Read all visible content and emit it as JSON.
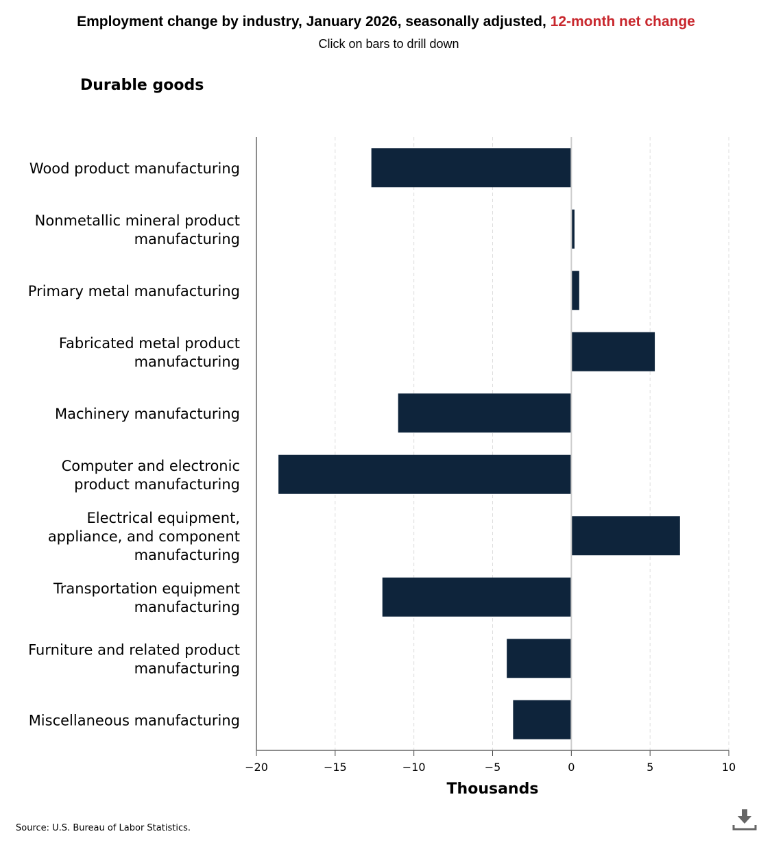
{
  "header": {
    "title": "Employment change by industry, January 2026, seasonally adjusted, ",
    "title_highlight": "12-month net change",
    "subtitle": "Click on bars to drill down",
    "group": "Durable goods"
  },
  "footer": {
    "source": "Source: U.S. Bureau of Labor Statistics.",
    "download_icon": "download-icon"
  },
  "colors": {
    "bar": "#0e243b",
    "highlight": "#c8272d"
  },
  "chart_data": {
    "type": "bar",
    "orientation": "horizontal",
    "categories": [
      [
        "Wood product manufacturing"
      ],
      [
        "Nonmetallic mineral product",
        "manufacturing"
      ],
      [
        "Primary metal manufacturing"
      ],
      [
        "Fabricated metal product",
        "manufacturing"
      ],
      [
        "Machinery manufacturing"
      ],
      [
        "Computer and electronic",
        "product manufacturing"
      ],
      [
        "Electrical equipment,",
        "appliance, and component",
        "manufacturing"
      ],
      [
        "Transportation equipment",
        "manufacturing"
      ],
      [
        "Furniture and related product",
        "manufacturing"
      ],
      [
        "Miscellaneous manufacturing"
      ]
    ],
    "values": [
      -12.7,
      0.2,
      0.5,
      5.3,
      -11.0,
      -18.6,
      6.9,
      -12.0,
      -4.1,
      -3.7
    ],
    "xlabel": "Thousands",
    "xlim": [
      -20,
      10
    ],
    "ticks": [
      -20,
      -15,
      -10,
      -5,
      0,
      5,
      10
    ],
    "tick_labels": [
      "−20",
      "−15",
      "−10",
      "−5",
      "0",
      "5",
      "10"
    ],
    "grid": true
  }
}
